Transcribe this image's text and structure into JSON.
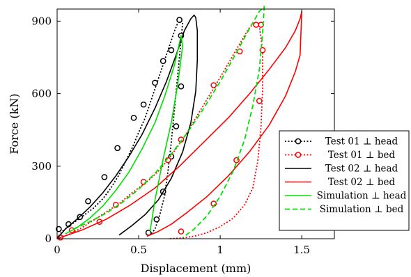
{
  "chart_data": {
    "type": "line",
    "title": "",
    "xlabel": "Displacement (mm)",
    "ylabel": "Force (kN)",
    "xlim": [
      0,
      1.7
    ],
    "ylim": [
      0,
      950
    ],
    "x_ticks": [
      {
        "value": 0,
        "label": "0"
      },
      {
        "value": 0.5,
        "label": "0.5"
      },
      {
        "value": 1,
        "label": "1"
      },
      {
        "value": 1.5,
        "label": "1.5"
      }
    ],
    "y_ticks": [
      {
        "value": 0,
        "label": "0"
      },
      {
        "value": 300,
        "label": "300"
      },
      {
        "value": 600,
        "label": "600"
      },
      {
        "value": 900,
        "label": "900"
      }
    ],
    "grid": false,
    "legend_position": "right",
    "series": [
      {
        "name": "Test 01 ⊥ head",
        "color": "#000000",
        "style": "dotted",
        "marker": "circle",
        "x": [
          0,
          0.03,
          0.08,
          0.15,
          0.22,
          0.28,
          0.33,
          0.38,
          0.42,
          0.46,
          0.5,
          0.54,
          0.57,
          0.6,
          0.63,
          0.66,
          0.69,
          0.72,
          0.75,
          0.77,
          0.76,
          0.74,
          0.72,
          0.7,
          0.68,
          0.66,
          0.63,
          0.6,
          0.57
        ],
        "y": [
          0,
          30,
          55,
          90,
          125,
          165,
          210,
          265,
          320,
          375,
          440,
          500,
          560,
          620,
          680,
          740,
          800,
          860,
          910,
          895,
          820,
          680,
          540,
          400,
          280,
          180,
          100,
          40,
          15
        ],
        "marker_x": [
          0.01,
          0.07,
          0.14,
          0.19,
          0.29,
          0.37,
          0.47,
          0.53,
          0.6,
          0.65,
          0.7,
          0.75,
          0.76,
          0.76,
          0.73,
          0.7,
          0.65,
          0.61,
          0.56
        ],
        "marker_y": [
          40,
          60,
          90,
          155,
          255,
          375,
          500,
          555,
          645,
          735,
          780,
          905,
          840,
          630,
          465,
          340,
          195,
          80,
          25
        ]
      },
      {
        "name": "Test 01 ⊥ bed",
        "color": "#ff0000",
        "style": "dotted",
        "marker": "circle",
        "x": [
          0,
          0.08,
          0.15,
          0.22,
          0.3,
          0.38,
          0.46,
          0.55,
          0.63,
          0.7,
          0.78,
          0.86,
          0.94,
          1.02,
          1.08,
          1.14,
          1.18,
          1.21,
          1.24,
          1.26,
          1.26,
          1.25,
          1.23,
          1.2,
          1.15,
          1.08,
          1.0,
          0.92,
          0.84,
          0.76,
          0.68
        ],
        "y": [
          0,
          20,
          45,
          75,
          110,
          145,
          190,
          235,
          285,
          345,
          420,
          510,
          600,
          690,
          760,
          830,
          875,
          890,
          880,
          780,
          620,
          460,
          320,
          210,
          140,
          85,
          50,
          25,
          10,
          3,
          0
        ],
        "marker_x": [
          0.02,
          0.09,
          0.26,
          0.36,
          0.53,
          0.68,
          0.76,
          0.96,
          1.12,
          1.22,
          1.25,
          1.26,
          1.24,
          1.1,
          0.96,
          0.76
        ],
        "marker_y": [
          5,
          35,
          70,
          140,
          235,
          325,
          410,
          635,
          775,
          885,
          885,
          780,
          570,
          325,
          145,
          30
        ]
      },
      {
        "name": "Test 02 ⊥ head",
        "color": "#000000",
        "style": "solid",
        "marker": "none",
        "x": [
          0,
          0.05,
          0.12,
          0.2,
          0.28,
          0.36,
          0.44,
          0.52,
          0.6,
          0.67,
          0.73,
          0.78,
          0.82,
          0.84,
          0.85,
          0.86,
          0.86,
          0.85,
          0.82,
          0.77,
          0.7,
          0.62,
          0.54,
          0.46,
          0.38
        ],
        "y": [
          0,
          40,
          80,
          130,
          190,
          260,
          340,
          430,
          540,
          650,
          760,
          860,
          910,
          925,
          915,
          860,
          740,
          610,
          480,
          360,
          250,
          160,
          100,
          55,
          15
        ],
        "marker_x": [],
        "marker_y": []
      },
      {
        "name": "Test 02 ⊥ bed",
        "color": "#ff0000",
        "style": "solid",
        "marker": "none",
        "x": [
          0,
          0.15,
          0.3,
          0.45,
          0.6,
          0.75,
          0.9,
          1.05,
          1.18,
          1.3,
          1.4,
          1.46,
          1.49,
          1.5,
          1.49,
          1.46,
          1.4,
          1.3,
          1.18,
          1.05,
          0.92,
          0.8,
          0.7,
          0.62,
          0.55
        ],
        "y": [
          0,
          35,
          80,
          140,
          210,
          300,
          400,
          500,
          600,
          700,
          790,
          860,
          910,
          940,
          760,
          690,
          590,
          470,
          360,
          260,
          175,
          110,
          60,
          30,
          10
        ],
        "marker_x": [],
        "marker_y": []
      },
      {
        "name": "Simulation ⊥ head",
        "color": "#00e000",
        "style": "solid",
        "marker": "none",
        "x": [
          0.05,
          0.12,
          0.2,
          0.28,
          0.36,
          0.44,
          0.52,
          0.6,
          0.66,
          0.72,
          0.76,
          0.77,
          0.74,
          0.7,
          0.65,
          0.6,
          0.57
        ],
        "y": [
          20,
          45,
          85,
          135,
          200,
          275,
          370,
          480,
          590,
          720,
          840,
          800,
          640,
          480,
          330,
          160,
          30
        ],
        "marker_x": [],
        "marker_y": []
      },
      {
        "name": "Simulation ⊥ bed",
        "color": "#00e000",
        "style": "dashed",
        "marker": "none",
        "x": [
          0.1,
          0.2,
          0.3,
          0.4,
          0.5,
          0.6,
          0.7,
          0.8,
          0.9,
          1.0,
          1.1,
          1.18,
          1.24,
          1.27,
          1.26,
          1.24,
          1.2,
          1.15,
          1.08,
          1.0,
          0.92,
          0.84,
          0.77
        ],
        "y": [
          40,
          70,
          105,
          150,
          205,
          270,
          350,
          440,
          540,
          650,
          770,
          870,
          940,
          960,
          850,
          700,
          550,
          410,
          280,
          175,
          95,
          40,
          5
        ],
        "marker_x": [],
        "marker_y": []
      }
    ]
  }
}
